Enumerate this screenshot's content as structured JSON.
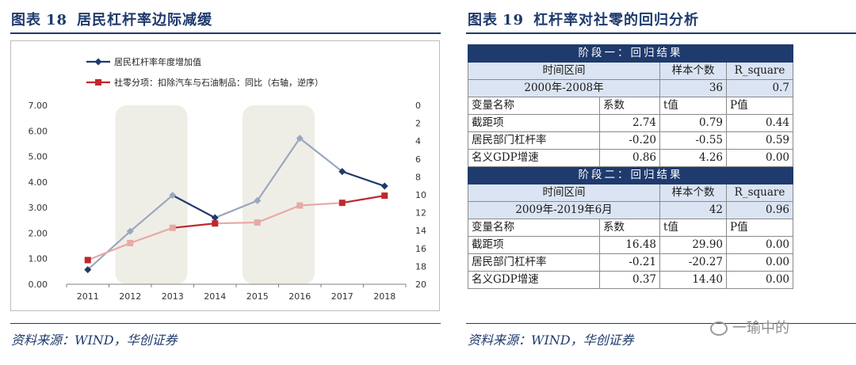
{
  "left": {
    "title_prefix": "图表",
    "title_num": "18",
    "title_text": "居民杠杆率边际减缓",
    "source": "资料来源：WIND，华创证券"
  },
  "right": {
    "title_prefix": "图表",
    "title_num": "19",
    "title_text": "杠杆率对社零的回归分析",
    "source": "资料来源：WIND，华创证券",
    "watermark": "一瑜中的"
  },
  "chart_data": {
    "type": "line",
    "x": [
      "2011",
      "2012",
      "2013",
      "2014",
      "2015",
      "2016",
      "2017",
      "2018"
    ],
    "series": [
      {
        "name": "居民杠杆率年度增加值",
        "axis": "left",
        "values": [
          0.57,
          2.07,
          3.48,
          2.6,
          3.27,
          5.71,
          4.41,
          3.84
        ],
        "color": "#1f3a6d",
        "marker": "diamond"
      },
      {
        "name": "社零分项：扣除汽车与石油制品：同比（右轴，逆序）",
        "axis": "right",
        "values": [
          17.3,
          15.4,
          13.7,
          13.2,
          13.1,
          11.2,
          10.9,
          10.1
        ],
        "color": "#c0272d",
        "marker": "square"
      }
    ],
    "left_ticks": [
      "0.00",
      "1.00",
      "2.00",
      "3.00",
      "4.00",
      "5.00",
      "6.00",
      "7.00"
    ],
    "right_ticks": [
      "0",
      "2",
      "4",
      "6",
      "8",
      "10",
      "12",
      "14",
      "16",
      "18",
      "20"
    ],
    "ylim": [
      0,
      7
    ],
    "y2lim": [
      0,
      20
    ],
    "y2_inverted": true,
    "shaded_years": [
      [
        "2012",
        "2013"
      ],
      [
        "2015",
        "2016"
      ]
    ],
    "legend_position": "top-left"
  },
  "table": {
    "rows": [
      {
        "type": "hdr",
        "cells": [
          "阶段一：回归结果"
        ]
      },
      {
        "type": "blue",
        "cells": [
          "时间区间",
          "",
          "样本个数",
          "R_square"
        ]
      },
      {
        "type": "blue",
        "cells": [
          "2000年-2008年",
          "",
          "36",
          "0.7"
        ]
      },
      {
        "type": "plain",
        "cells": [
          "变量名称",
          "系数",
          "t值",
          "P值"
        ]
      },
      {
        "type": "plain",
        "cells": [
          "截距项",
          "2.74",
          "0.79",
          "0.44"
        ]
      },
      {
        "type": "plain",
        "cells": [
          "居民部门杠杆率",
          "-0.20",
          "-0.55",
          "0.59"
        ]
      },
      {
        "type": "plain",
        "cells": [
          "名义GDP增速",
          "0.86",
          "4.26",
          "0.00"
        ]
      },
      {
        "type": "hdr",
        "cells": [
          "阶段二：回归结果"
        ]
      },
      {
        "type": "blue",
        "cells": [
          "时间区间",
          "",
          "样本个数",
          "R_square"
        ]
      },
      {
        "type": "blue",
        "cells": [
          "2009年-2019年6月",
          "",
          "42",
          "0.96"
        ]
      },
      {
        "type": "plain",
        "cells": [
          "变量名称",
          "系数",
          "t值",
          "P值"
        ]
      },
      {
        "type": "plain",
        "cells": [
          "截距项",
          "16.48",
          "29.90",
          "0.00"
        ]
      },
      {
        "type": "plain",
        "cells": [
          "居民部门杠杆率",
          "-0.21",
          "-20.27",
          "0.00"
        ]
      },
      {
        "type": "plain",
        "cells": [
          "名义GDP增速",
          "0.37",
          "14.40",
          "0.00"
        ]
      }
    ]
  }
}
